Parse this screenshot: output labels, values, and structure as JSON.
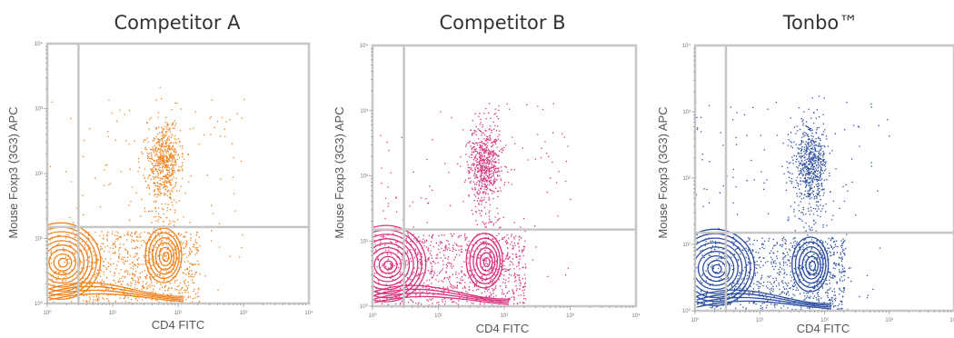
{
  "chart_data": [
    {
      "type": "scatter",
      "title": "Competitor A",
      "xlabel": "CD4 FITC",
      "ylabel": "Mouse Foxp3 (3G3) APC",
      "xscale": "log",
      "yscale": "log",
      "xlim": [
        1,
        10000
      ],
      "ylim": [
        1,
        10000
      ],
      "x_ticks": [
        "10⁰",
        "10¹",
        "10²",
        "10³",
        "10⁴"
      ],
      "y_ticks": [
        "10⁰",
        "10¹",
        "10²",
        "10³",
        "10⁴"
      ],
      "gate": {
        "x": 3,
        "y": 15
      },
      "color": "#f0821e",
      "populations": [
        {
          "name": "CD4- Foxp3- (contours)",
          "x": 1.6,
          "y": 4.5
        },
        {
          "name": "CD4+ Foxp3- (contours)",
          "x": 60,
          "y": 5.5
        },
        {
          "name": "CD4+ Foxp3+ (dots)",
          "x": 60,
          "y": 180
        }
      ]
    },
    {
      "type": "scatter",
      "title": "Competitor B",
      "xlabel": "CD4 FITC",
      "ylabel": "Mouse Foxp3 (3G3) APC",
      "xscale": "log",
      "yscale": "log",
      "xlim": [
        1,
        10000
      ],
      "ylim": [
        1,
        10000
      ],
      "x_ticks": [
        "10⁰",
        "10¹",
        "10²",
        "10³",
        "10⁴"
      ],
      "y_ticks": [
        "10⁰",
        "10¹",
        "10²",
        "10³",
        "10⁴"
      ],
      "gate": {
        "x": 3,
        "y": 15
      },
      "color": "#d8337e",
      "populations": [
        {
          "name": "CD4- Foxp3- (contours)",
          "x": 1.6,
          "y": 4.5
        },
        {
          "name": "CD4+ Foxp3- (contours)",
          "x": 50,
          "y": 5
        },
        {
          "name": "CD4+ Foxp3+ (dots)",
          "x": 50,
          "y": 170
        }
      ]
    },
    {
      "type": "scatter",
      "title": "Tonbo™",
      "xlabel": "CD4 FITC",
      "ylabel": "Mouse Foxp3 (3G3) APC",
      "xscale": "log",
      "yscale": "log",
      "xlim": [
        1,
        10000
      ],
      "ylim": [
        1,
        10000
      ],
      "x_ticks": [
        "10⁰",
        "10¹",
        "10²",
        "10³",
        "10⁴"
      ],
      "y_ticks": [
        "10⁰",
        "10¹",
        "10²",
        "10³",
        "10⁴"
      ],
      "gate": {
        "x": 3,
        "y": 15
      },
      "color": "#2e4fa0",
      "populations": [
        {
          "name": "CD4- Foxp3- (contours)",
          "x": 2,
          "y": 4.5
        },
        {
          "name": "CD4+ Foxp3- (contours)",
          "x": 60,
          "y": 5
        },
        {
          "name": "CD4+ Foxp3+ (dots)",
          "x": 60,
          "y": 190
        }
      ]
    }
  ]
}
